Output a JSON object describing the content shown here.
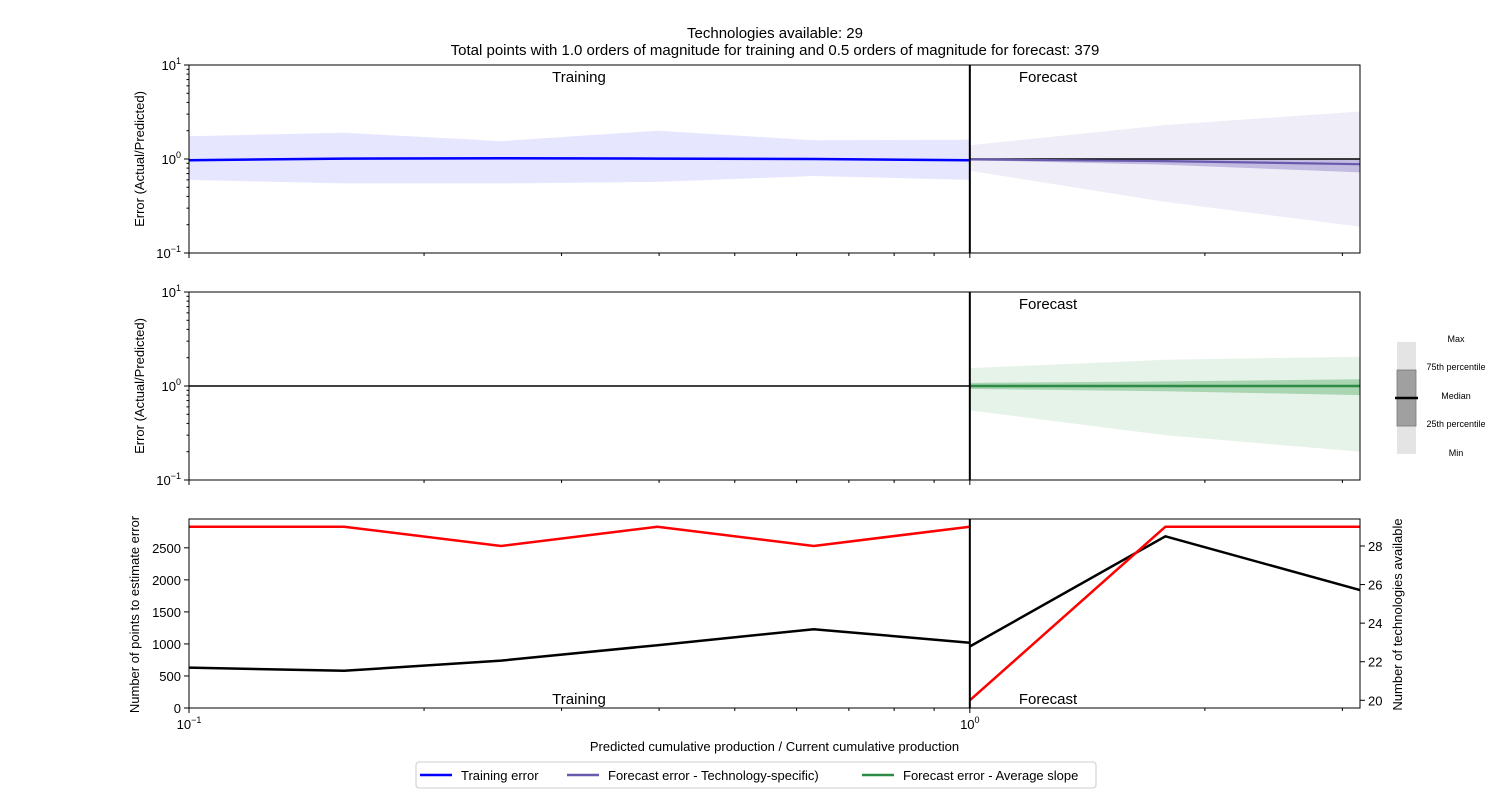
{
  "title_line1": "Technologies available: 29",
  "title_line2": "Total points with 1.0 orders of magnitude for training  and 0.5 orders of magnitude for forecast: 379",
  "colors": {
    "training": "#0000ff",
    "training_band": "#e6e6ff",
    "tech_forecast": "#6a5aad",
    "tech_band_outer": "#efedf8",
    "tech_band_inner": "#c3bbe0",
    "avg_forecast": "#2e8b45",
    "avg_band_outer": "#e6f3e9",
    "avg_band_inner": "#a9d5b3",
    "points": "#000000",
    "techs": "#ff0000"
  },
  "chart_data": [
    {
      "type": "area",
      "id": "panel1",
      "ylabel": "Error (Actual/Predicted)",
      "yscale": "log",
      "xscale": "log",
      "xlim": [
        0.1,
        3.16
      ],
      "ylim": [
        0.1,
        10
      ],
      "yticks": [
        {
          "value": 0.1,
          "base": "10",
          "exp": "−1"
        },
        {
          "value": 1,
          "base": "10",
          "exp": "0"
        },
        {
          "value": 10,
          "base": "10",
          "exp": "1"
        }
      ],
      "annotations": [
        "Training",
        "Forecast"
      ],
      "divider_x": 1,
      "training": {
        "x": [
          0.1,
          0.158,
          0.251,
          0.398,
          0.631,
          1.0
        ],
        "median": [
          0.97,
          1.01,
          1.02,
          1.01,
          1.0,
          0.97
        ],
        "p25": [
          0.95,
          0.98,
          0.98,
          0.98,
          0.98,
          0.95
        ],
        "p75": [
          1.0,
          1.03,
          1.04,
          1.03,
          1.02,
          1.0
        ],
        "min": [
          0.6,
          0.55,
          0.55,
          0.57,
          0.66,
          0.6
        ],
        "max": [
          1.75,
          1.9,
          1.55,
          2.0,
          1.58,
          1.6
        ]
      },
      "forecast": {
        "x": [
          1.0,
          1.78,
          3.16
        ],
        "median": [
          0.99,
          0.95,
          0.88
        ],
        "p25": [
          0.97,
          0.87,
          0.72
        ],
        "p75": [
          1.01,
          1.0,
          0.98
        ],
        "min": [
          0.75,
          0.35,
          0.19
        ],
        "max": [
          1.4,
          2.3,
          3.2
        ],
        "reference": 1.0
      }
    },
    {
      "type": "area",
      "id": "panel2",
      "ylabel": "Error (Actual/Predicted)",
      "yscale": "log",
      "xscale": "log",
      "xlim": [
        0.1,
        3.16
      ],
      "ylim": [
        0.1,
        10
      ],
      "yticks": [
        {
          "value": 0.1,
          "base": "10",
          "exp": "−1"
        },
        {
          "value": 1,
          "base": "10",
          "exp": "0"
        },
        {
          "value": 10,
          "base": "10",
          "exp": "1"
        }
      ],
      "annotations": [
        "Forecast"
      ],
      "divider_x": 1,
      "reference": 1.0,
      "forecast": {
        "x": [
          1.0,
          1.78,
          3.16
        ],
        "median": [
          1.0,
          1.0,
          1.0
        ],
        "p25": [
          0.93,
          0.88,
          0.8
        ],
        "p75": [
          1.08,
          1.12,
          1.18
        ],
        "min": [
          0.55,
          0.3,
          0.2
        ],
        "max": [
          1.55,
          1.9,
          2.05
        ]
      }
    },
    {
      "type": "line",
      "id": "panel3",
      "xlabel": "Predicted cumulative production / Current cumulative production",
      "ylabel": "Number of points to estimate error",
      "y2label": "Number of technologies available",
      "xscale": "log",
      "xlim": [
        0.1,
        3.16
      ],
      "ylim": [
        0,
        2950
      ],
      "y2lim": [
        19.6,
        29.4
      ],
      "yticks": [
        0,
        500,
        1000,
        1500,
        2000,
        2500
      ],
      "y2ticks": [
        20,
        22,
        24,
        26,
        28
      ],
      "xticks": [
        {
          "value": 0.1,
          "base": "10",
          "exp": "−1"
        },
        {
          "value": 1,
          "base": "10",
          "exp": "0"
        }
      ],
      "annotations": [
        "Training",
        "Forecast"
      ],
      "divider_x": 1,
      "series": [
        {
          "name": "points",
          "axis": "left",
          "segments": [
            {
              "x": [
                0.1,
                0.158,
                0.251,
                0.398,
                0.631,
                1.0
              ],
              "y": [
                630,
                580,
                740,
                980,
                1230,
                1020
              ]
            },
            {
              "x": [
                1.0,
                1.78,
                3.16
              ],
              "y": [
                960,
                2680,
                1840
              ]
            }
          ]
        },
        {
          "name": "technologies",
          "axis": "right",
          "segments": [
            {
              "x": [
                0.1,
                0.158,
                0.251,
                0.398,
                0.631,
                1.0
              ],
              "y": [
                29,
                29,
                28,
                29,
                28,
                29
              ]
            },
            {
              "x": [
                1.0,
                1.78,
                3.16
              ],
              "y": [
                20,
                29,
                29
              ]
            }
          ]
        }
      ]
    }
  ],
  "boxplot_key": {
    "labels": [
      "Max",
      "75th percentile",
      "Median",
      "25th percentile",
      "Min"
    ]
  },
  "legend": {
    "items": [
      {
        "label": "Training error",
        "color": "#0000ff"
      },
      {
        "label": "Forecast error - Technology-specific)",
        "color": "#6a5aad"
      },
      {
        "label": "Forecast error - Average slope",
        "color": "#2e8b45"
      }
    ]
  }
}
